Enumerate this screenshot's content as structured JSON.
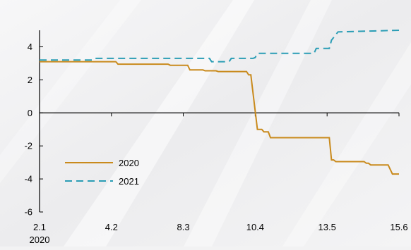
{
  "chart_data": {
    "type": "line",
    "title": "",
    "xlabel": "",
    "ylabel": "",
    "ylim": [
      -6,
      5
    ],
    "y_ticks": [
      -6,
      -4,
      -2,
      0,
      2,
      4
    ],
    "y_tick_labels": [
      "-6",
      "-4",
      "-2",
      "0",
      "2",
      "4"
    ],
    "x_range": [
      "2020-01-02",
      "2020-06-15"
    ],
    "x_ticks": [
      "2020-01-02",
      "2020-02-04",
      "2020-03-08",
      "2020-04-10",
      "2020-05-13",
      "2020-06-15"
    ],
    "x_tick_labels": [
      "2.1",
      "4.2",
      "8.3",
      "10.4",
      "13.5",
      "15.6"
    ],
    "x_year_label": "2020",
    "grid": false,
    "legend_position": "lower-left",
    "series": [
      {
        "name": "2020",
        "color": "#c98a1c",
        "style": "solid",
        "points": [
          [
            "2020-01-02",
            3.1
          ],
          [
            "2020-02-06",
            3.1
          ],
          [
            "2020-02-07",
            2.95
          ],
          [
            "2020-03-01",
            2.95
          ],
          [
            "2020-03-02",
            2.88
          ],
          [
            "2020-03-10",
            2.88
          ],
          [
            "2020-03-11",
            2.6
          ],
          [
            "2020-03-17",
            2.6
          ],
          [
            "2020-03-18",
            2.55
          ],
          [
            "2020-03-23",
            2.55
          ],
          [
            "2020-03-24",
            2.5
          ],
          [
            "2020-04-06",
            2.5
          ],
          [
            "2020-04-07",
            2.3
          ],
          [
            "2020-04-08",
            2.3
          ],
          [
            "2020-04-11",
            -1.0
          ],
          [
            "2020-04-13",
            -1.0
          ],
          [
            "2020-04-14",
            -1.15
          ],
          [
            "2020-04-16",
            -1.15
          ],
          [
            "2020-04-17",
            -1.5
          ],
          [
            "2020-05-14",
            -1.5
          ],
          [
            "2020-05-15",
            -2.85
          ],
          [
            "2020-05-16",
            -2.85
          ],
          [
            "2020-05-17",
            -2.95
          ],
          [
            "2020-05-30",
            -2.95
          ],
          [
            "2020-05-31",
            -3.05
          ],
          [
            "2020-06-01",
            -3.05
          ],
          [
            "2020-06-02",
            -3.15
          ],
          [
            "2020-06-10",
            -3.15
          ],
          [
            "2020-06-12",
            -3.7
          ],
          [
            "2020-06-15",
            -3.7
          ]
        ]
      },
      {
        "name": "2021",
        "color": "#2a9db5",
        "style": "dashed",
        "points": [
          [
            "2020-01-02",
            3.2
          ],
          [
            "2020-01-26",
            3.2
          ],
          [
            "2020-01-27",
            3.3
          ],
          [
            "2020-03-20",
            3.3
          ],
          [
            "2020-03-21",
            3.1
          ],
          [
            "2020-03-29",
            3.1
          ],
          [
            "2020-03-30",
            3.3
          ],
          [
            "2020-04-09",
            3.3
          ],
          [
            "2020-04-10",
            3.35
          ],
          [
            "2020-04-11",
            3.6
          ],
          [
            "2020-05-07",
            3.6
          ],
          [
            "2020-05-08",
            3.9
          ],
          [
            "2020-05-14",
            3.9
          ],
          [
            "2020-05-15",
            4.4
          ],
          [
            "2020-05-18",
            4.9
          ],
          [
            "2020-06-15",
            5.0
          ]
        ]
      }
    ]
  }
}
